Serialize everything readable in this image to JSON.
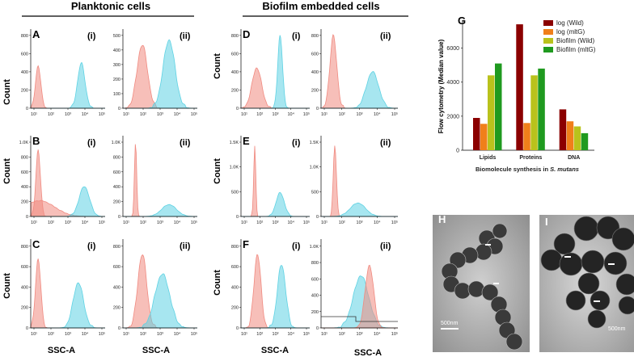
{
  "headers": {
    "planktonic": "Planktonic cells",
    "biofilm": "Biofilm embedded cells"
  },
  "panel_labels": [
    "A",
    "B",
    "C",
    "D",
    "E",
    "F",
    "G",
    "H",
    "I"
  ],
  "sub_labels": {
    "i": "(i)",
    "ii": "(ii)"
  },
  "axis_labels": {
    "count": "Count",
    "ssc": "SSC-A"
  },
  "x_ticks": [
    "10¹",
    "10²",
    "10³",
    "10⁴",
    "10⁵"
  ],
  "colors": {
    "red_hist": "#f08a80",
    "blue_hist": "#5ed2e3",
    "log_wild": "#8b0000",
    "log_mltg": "#f07f1a",
    "bio_wild": "#b9c21c",
    "bio_mltg": "#1f9a1f"
  },
  "histograms": {
    "A_i": {
      "y_ticks": [
        "0",
        "200",
        "400",
        "600",
        "800"
      ]
    },
    "A_ii": {
      "y_ticks": [
        "0",
        "100",
        "200",
        "300",
        "400",
        "500"
      ]
    },
    "B_i": {
      "y_ticks": [
        "0",
        "200",
        "400",
        "600",
        "800",
        "1.0K"
      ]
    },
    "B_ii": {
      "y_ticks": [
        "0",
        "200",
        "400",
        "600",
        "800",
        "1.0K"
      ]
    },
    "C_i": {
      "y_ticks": [
        "0",
        "200",
        "400",
        "600",
        "800"
      ]
    },
    "C_ii": {
      "y_ticks": [
        "0",
        "200",
        "400",
        "600",
        "800"
      ]
    },
    "D_i": {
      "y_ticks": [
        "0",
        "200",
        "400",
        "600",
        "800"
      ]
    },
    "D_ii": {
      "y_ticks": [
        "0",
        "200",
        "400",
        "600",
        "800"
      ]
    },
    "E_i": {
      "y_ticks": [
        "0",
        "500",
        "1.0K",
        "1.5K"
      ]
    },
    "E_ii": {
      "y_ticks": [
        "0",
        "500",
        "1.0K",
        "1.5K"
      ]
    },
    "F_i": {
      "y_ticks": [
        "0",
        "200",
        "400",
        "600",
        "800"
      ]
    },
    "F_ii": {
      "y_ticks": [
        "0",
        "200",
        "400",
        "600",
        "800",
        "1.0K"
      ]
    }
  },
  "chart_data": {
    "type": "bar",
    "title": "",
    "categories": [
      "Lipids",
      "Proteins",
      "DNA"
    ],
    "series": [
      {
        "name": "log (Wild)",
        "values": [
          1900,
          7400,
          2400
        ]
      },
      {
        "name": "log (mltG)",
        "values": [
          1550,
          1600,
          1700
        ]
      },
      {
        "name": "Biofilm (Wild)",
        "values": [
          4400,
          4400,
          1400
        ]
      },
      {
        "name": "Biofilm (mltG)",
        "values": [
          5100,
          4800,
          1000
        ]
      }
    ],
    "ylabel": "Flow cytometry (Median value)",
    "xlabel": "Biomolecule synthesis in S. mutans",
    "xlabel_plain": "Biomolecule synthesis in ",
    "xlabel_italic": "S. mutans",
    "ylim": [
      0,
      7500
    ],
    "y_ticks": [
      "0",
      "2000",
      "4000",
      "6000"
    ],
    "legend_position": "top-right"
  },
  "micrographs": {
    "H": {
      "scale": "500nm"
    },
    "I": {
      "scale": "500nm"
    }
  }
}
